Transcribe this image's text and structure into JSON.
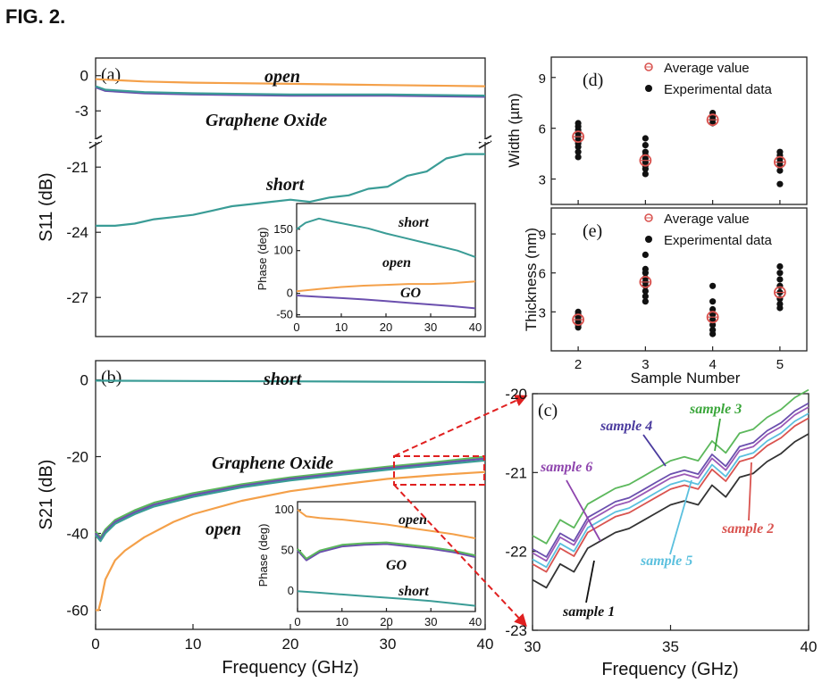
{
  "figure": {
    "title": "FIG. 2.",
    "colors": {
      "open": "#f4a049",
      "short": "#3a9c96",
      "graphene_oxide": "#6b4fae",
      "go_green": "#5cb85c",
      "average_marker": "#d9534f",
      "experimental_marker": "#111111",
      "zoom_line": "#e02020"
    }
  },
  "chart_data": [
    {
      "id": "a",
      "panel_label": "(a)",
      "type": "line",
      "ylabel": "S11 (dB)",
      "xlabel": "",
      "xlim": [
        0,
        40
      ],
      "yticks_upper": [
        "0",
        "-3"
      ],
      "yticks_lower": [
        "-21",
        "-24",
        "-27"
      ],
      "ylim_upper": [
        -4.2,
        1.5
      ],
      "ylim_lower": [
        -28.8,
        -19.8
      ],
      "axis_break": true,
      "annotations": [
        "open",
        "Graphene Oxide",
        "short"
      ],
      "series": [
        {
          "name": "open",
          "color": "#f4a049",
          "x": [
            0,
            5,
            10,
            20,
            30,
            40
          ],
          "y": [
            -0.3,
            -0.5,
            -0.6,
            -0.7,
            -0.8,
            -0.9
          ]
        },
        {
          "name": "Graphene Oxide",
          "color": "#6b4fae",
          "x": [
            0,
            1,
            5,
            10,
            20,
            30,
            40
          ],
          "y": [
            -1.0,
            -1.3,
            -1.5,
            -1.6,
            -1.7,
            -1.7,
            -1.8
          ]
        },
        {
          "name": "Graphene Oxide (trace 2)",
          "color": "#3a9c96",
          "x": [
            0,
            1,
            5,
            10,
            20,
            30,
            40
          ],
          "y": [
            -0.9,
            -1.2,
            -1.4,
            -1.5,
            -1.6,
            -1.6,
            -1.7
          ]
        },
        {
          "name": "short",
          "color": "#3a9c96",
          "x": [
            0,
            2,
            4,
            6,
            8,
            10,
            12,
            14,
            16,
            18,
            20,
            22,
            24,
            26,
            28,
            30,
            32,
            34,
            36,
            38,
            40
          ],
          "y": [
            -23.7,
            -23.7,
            -23.6,
            -23.4,
            -23.3,
            -23.2,
            -23.0,
            -22.8,
            -22.7,
            -22.6,
            -22.5,
            -22.6,
            -22.4,
            -22.3,
            -22.0,
            -21.9,
            -21.4,
            -21.2,
            -20.6,
            -20.4,
            -20.4
          ]
        }
      ],
      "inset": {
        "ylabel": "Phase (deg)",
        "xlim": [
          0,
          40
        ],
        "ylim": [
          -55,
          210
        ],
        "xticks": [
          "0",
          "10",
          "20",
          "30",
          "40"
        ],
        "yticks": [
          "-50",
          "0",
          "100",
          "150"
        ],
        "ytick_values": [
          -50,
          0,
          100,
          150
        ],
        "annotations": [
          "short",
          "open",
          "GO"
        ],
        "series": [
          {
            "name": "short",
            "color": "#3a9c96",
            "x": [
              0,
              2,
              5,
              8,
              12,
              16,
              20,
              24,
              28,
              32,
              36,
              40
            ],
            "y": [
              150,
              165,
              175,
              168,
              160,
              152,
              140,
              130,
              120,
              110,
              100,
              85
            ]
          },
          {
            "name": "open",
            "color": "#f4a049",
            "x": [
              0,
              5,
              10,
              15,
              20,
              25,
              30,
              35,
              40
            ],
            "y": [
              5,
              10,
              15,
              18,
              20,
              22,
              22,
              24,
              28
            ]
          },
          {
            "name": "GO",
            "color": "#6b4fae",
            "x": [
              0,
              5,
              10,
              15,
              20,
              25,
              30,
              35,
              40
            ],
            "y": [
              -5,
              -8,
              -11,
              -14,
              -18,
              -22,
              -26,
              -30,
              -35
            ]
          }
        ]
      }
    },
    {
      "id": "b",
      "panel_label": "(b)",
      "type": "line",
      "ylabel": "S21 (dB)",
      "xlabel": "Frequency (GHz)",
      "xlim": [
        0,
        40
      ],
      "ylim": [
        -65,
        5
      ],
      "xticks": [
        "0",
        "10",
        "20",
        "30",
        "40"
      ],
      "yticks": [
        "0",
        "-20",
        "-40",
        "-60"
      ],
      "ytick_values": [
        0,
        -20,
        -40,
        -60
      ],
      "annotations": [
        "short",
        "Graphene Oxide",
        "open"
      ],
      "series": [
        {
          "name": "short",
          "color": "#3a9c96",
          "x": [
            0,
            10,
            20,
            30,
            40
          ],
          "y": [
            -0.2,
            -0.3,
            -0.4,
            -0.5,
            -0.6
          ]
        },
        {
          "name": "Graphene Oxide (green)",
          "color": "#5cb85c",
          "x": [
            0,
            0.5,
            1,
            2,
            4,
            6,
            10,
            15,
            20,
            25,
            30,
            35,
            40
          ],
          "y": [
            -39.5,
            -41,
            -39,
            -36.5,
            -34,
            -32,
            -29.5,
            -27.2,
            -25.4,
            -24,
            -22.6,
            -21.4,
            -20.0
          ]
        },
        {
          "name": "Graphene Oxide",
          "color": "#6b4fae",
          "x": [
            0,
            0.5,
            1,
            2,
            4,
            6,
            10,
            15,
            20,
            25,
            30,
            35,
            40
          ],
          "y": [
            -40,
            -41.5,
            -39.5,
            -37,
            -34.5,
            -32.5,
            -30,
            -27.6,
            -25.8,
            -24.4,
            -23.0,
            -21.8,
            -20.5
          ]
        },
        {
          "name": "Graphene Oxide (teal)",
          "color": "#3a9c96",
          "x": [
            0,
            0.5,
            1,
            2,
            4,
            6,
            10,
            15,
            20,
            25,
            30,
            35,
            40
          ],
          "y": [
            -40.5,
            -42,
            -40,
            -37.5,
            -35,
            -33,
            -30.5,
            -28,
            -26.2,
            -24.8,
            -23.4,
            -22.2,
            -21.0
          ]
        },
        {
          "name": "open",
          "color": "#f4a049",
          "x": [
            0,
            0.3,
            0.6,
            1,
            2,
            3,
            5,
            8,
            10,
            15,
            20,
            25,
            30,
            35,
            40
          ],
          "y": [
            -60,
            -60,
            -57,
            -52,
            -47,
            -44.5,
            -41,
            -37,
            -35,
            -31.5,
            -29,
            -27.3,
            -25.8,
            -24.8,
            -24.0
          ]
        }
      ],
      "inset": {
        "ylabel": "Phase (deg)",
        "xlim": [
          0,
          40
        ],
        "ylim": [
          -25,
          110
        ],
        "xticks": [
          "0",
          "10",
          "20",
          "30",
          "40"
        ],
        "yticks": [
          "0",
          "50",
          "100"
        ],
        "ytick_values": [
          0,
          50,
          100
        ],
        "annotations": [
          "open",
          "GO",
          "short"
        ],
        "series": [
          {
            "name": "open",
            "color": "#f4a049",
            "x": [
              0,
              2,
              5,
              10,
              15,
              20,
              25,
              30,
              35,
              40
            ],
            "y": [
              100,
              92,
              90,
              88,
              85,
              82,
              78,
              74,
              70,
              65
            ]
          },
          {
            "name": "GO",
            "color": "#6b4fae",
            "x": [
              0,
              2,
              5,
              10,
              15,
              20,
              25,
              30,
              35,
              40
            ],
            "y": [
              50,
              38,
              48,
              55,
              57,
              58,
              55,
              52,
              48,
              42
            ]
          },
          {
            "name": "GO (green)",
            "color": "#5cb85c",
            "x": [
              0,
              2,
              5,
              10,
              15,
              20,
              25,
              30,
              35,
              40
            ],
            "y": [
              52,
              40,
              50,
              57,
              59,
              60,
              57,
              54,
              50,
              44
            ]
          },
          {
            "name": "short",
            "color": "#3a9c96",
            "x": [
              0,
              5,
              10,
              15,
              20,
              25,
              30,
              35,
              40
            ],
            "y": [
              0,
              -2,
              -4,
              -6,
              -8,
              -10,
              -12,
              -15,
              -18
            ]
          }
        ]
      }
    },
    {
      "id": "c",
      "panel_label": "(c)",
      "type": "line",
      "ylabel": "",
      "xlabel": "Frequency (GHz)",
      "xlim": [
        30,
        40
      ],
      "ylim": [
        -23,
        -20
      ],
      "xticks": [
        "30",
        "35",
        "40"
      ],
      "xtick_values": [
        30,
        35,
        40
      ],
      "yticks": [
        "-20",
        "-21",
        "-22",
        "-23"
      ],
      "ytick_values": [
        -20,
        -21,
        -22,
        -23
      ],
      "series": [
        {
          "name": "sample 3",
          "color": "#5cb85c",
          "offset": 0.0
        },
        {
          "name": "sample 4",
          "color": "#6b4fae",
          "offset": -0.17
        },
        {
          "name": "sample 6",
          "color": "#9b59b6",
          "offset": -0.22
        },
        {
          "name": "sample 5",
          "color": "#5bc0de",
          "offset": -0.3
        },
        {
          "name": "sample 2",
          "color": "#d9534f",
          "offset": -0.36
        },
        {
          "name": "sample 1",
          "color": "#333333",
          "offset": -0.56
        }
      ],
      "base_x": [
        30,
        30.5,
        31,
        31.5,
        32,
        32.5,
        33,
        33.5,
        34,
        34.5,
        35,
        35.5,
        36,
        36.5,
        37,
        37.5,
        38,
        38.5,
        39,
        39.5,
        40
      ],
      "base_y": [
        -21.8,
        -21.9,
        -21.6,
        -21.7,
        -21.4,
        -21.3,
        -21.2,
        -21.15,
        -21.05,
        -20.95,
        -20.85,
        -20.8,
        -20.85,
        -20.6,
        -20.75,
        -20.5,
        -20.45,
        -20.3,
        -20.2,
        -20.05,
        -19.95
      ]
    },
    {
      "id": "d",
      "panel_label": "(d)",
      "type": "scatter",
      "ylabel": "Width (µm)",
      "xlim": [
        1.6,
        5.4
      ],
      "ylim": [
        1.5,
        10.2
      ],
      "yticks": [
        "3",
        "6",
        "9"
      ],
      "ytick_values": [
        3,
        6,
        9
      ],
      "legend": [
        "Average value",
        "Experimental data"
      ],
      "categories": [
        2,
        3,
        4,
        5
      ],
      "average": [
        5.5,
        4.1,
        6.5,
        4.0
      ],
      "experimental": [
        [
          4.3,
          4.6,
          4.9,
          5.1,
          5.3,
          5.5,
          5.7,
          5.9,
          6.1,
          6.3
        ],
        [
          3.3,
          3.6,
          3.8,
          4.0,
          4.2,
          4.4,
          4.6,
          5.0,
          5.4
        ],
        [
          6.3,
          6.5,
          6.7,
          6.9
        ],
        [
          2.7,
          3.5,
          3.8,
          4.0,
          4.2,
          4.4,
          4.6
        ]
      ]
    },
    {
      "id": "e",
      "panel_label": "(e)",
      "type": "scatter",
      "ylabel": "Thickness (nm)",
      "xlabel": "Sample Number",
      "xlim": [
        1.6,
        5.4
      ],
      "ylim": [
        0,
        11
      ],
      "xticks": [
        "2",
        "3",
        "4",
        "5"
      ],
      "xtick_values": [
        2,
        3,
        4,
        5
      ],
      "yticks": [
        "3",
        "6",
        "9"
      ],
      "ytick_values": [
        3,
        6,
        9
      ],
      "legend": [
        "Average value",
        "Experimental data"
      ],
      "categories": [
        2,
        3,
        4,
        5
      ],
      "average": [
        2.4,
        5.3,
        2.6,
        4.5
      ],
      "experimental": [
        [
          1.8,
          2.0,
          2.2,
          2.4,
          2.6,
          2.8,
          3.0
        ],
        [
          3.8,
          4.2,
          4.6,
          5.0,
          5.3,
          5.6,
          6.0,
          6.3,
          7.4
        ],
        [
          1.3,
          1.6,
          2.0,
          2.4,
          2.8,
          3.2,
          3.8,
          5.0
        ],
        [
          3.3,
          3.6,
          4.0,
          4.5,
          5.0,
          5.5,
          6.0,
          6.5
        ]
      ]
    }
  ]
}
